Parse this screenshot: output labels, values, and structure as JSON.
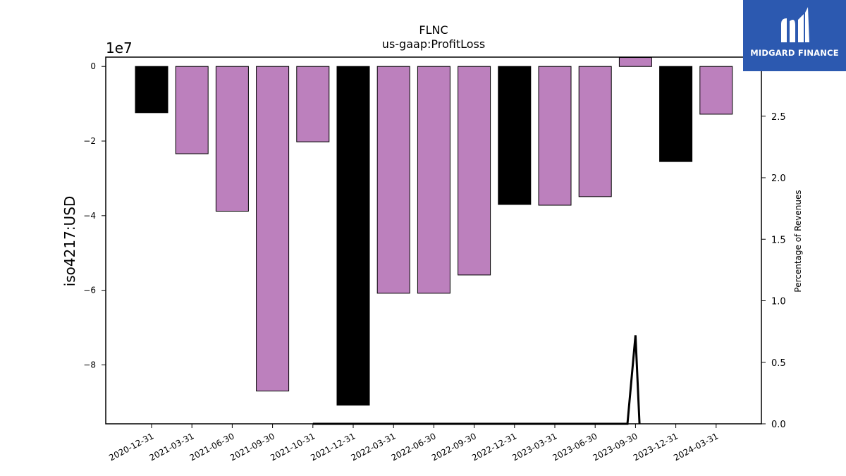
{
  "chart_data": {
    "type": "bar",
    "title": "FLNC",
    "subtitle": "us-gaap:ProfitLoss",
    "ylabel": "iso4217:USD",
    "y_offset_label": "1e7",
    "y2label": "Percentage of Revenues",
    "categories": [
      "2020-12-31",
      "2021-03-31",
      "2021-06-30",
      "2021-09-30",
      "2021-10-31",
      "2021-12-31",
      "2022-03-31",
      "2022-06-30",
      "2022-09-30",
      "2022-12-31",
      "2023-03-31",
      "2023-06-30",
      "2023-09-30",
      "2023-12-31",
      "2024-03-31"
    ],
    "values": [
      -12400000,
      -23400000,
      -38800000,
      -87000000,
      -20200000,
      -90800000,
      -60800000,
      -60800000,
      -55900000,
      -37000000,
      -37200000,
      -34900000,
      2400000,
      -25500000,
      -12800000
    ],
    "bar_colors": [
      "#000000",
      "#bc80bd",
      "#bc80bd",
      "#bc80bd",
      "#bc80bd",
      "#000000",
      "#bc80bd",
      "#bc80bd",
      "#bc80bd",
      "#000000",
      "#bc80bd",
      "#bc80bd",
      "#bc80bd",
      "#000000",
      "#bc80bd"
    ],
    "ylim": [
      -95800000,
      2500000
    ],
    "yticks": [
      0,
      -20000000,
      -40000000,
      -60000000,
      -80000000
    ],
    "ytick_labels": [
      "0",
      "−2",
      "−4",
      "−6",
      "−8"
    ],
    "y2lim": [
      0,
      2.98
    ],
    "y2ticks": [
      0.0,
      0.5,
      1.0,
      1.5,
      2.0,
      2.5
    ],
    "y2tick_labels": [
      "0.0",
      "0.5",
      "1.0",
      "1.5",
      "2.0",
      "2.5"
    ],
    "line_series": {
      "name": "",
      "x": [
        4,
        4.2,
        11.8,
        12,
        12.1
      ],
      "values": [
        0.0,
        0.0,
        0.0,
        0.72,
        0.0
      ]
    },
    "grid": false,
    "legend": "none"
  },
  "logo": {
    "text": "MIDGARD FINANCE",
    "color": "#2c59b0"
  }
}
